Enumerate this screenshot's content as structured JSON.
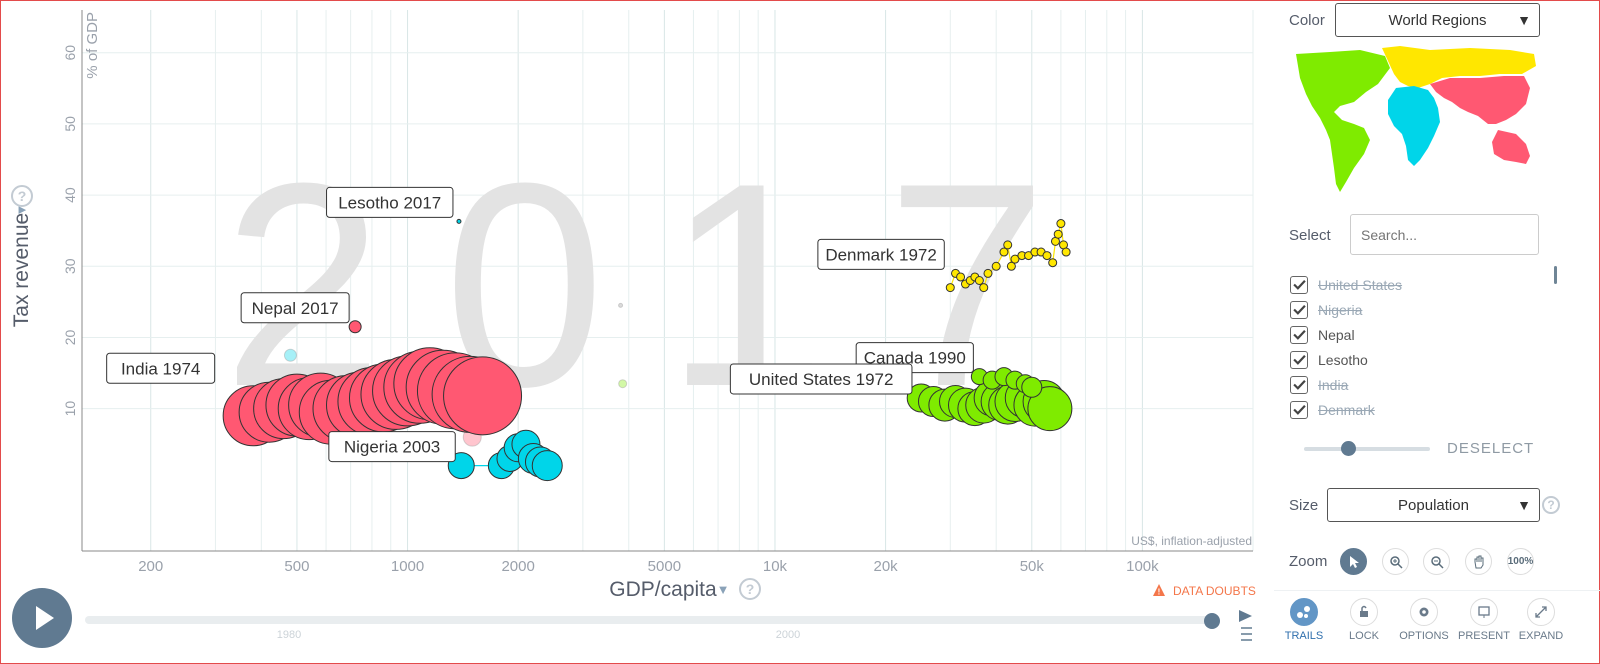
{
  "chart_data": {
    "type": "scatter",
    "year_watermark": "2017",
    "xlabel": "GDP/capita",
    "ylabel": "Tax revenue",
    "y_unit": "% of GDP",
    "x_unit_note": "US$, inflation-adjusted",
    "x_scale": "log",
    "xlim": [
      130,
      200000
    ],
    "ylim": [
      -10,
      66
    ],
    "x_ticks": [
      {
        "v": 200,
        "label": "200"
      },
      {
        "v": 500,
        "label": "500"
      },
      {
        "v": 1000,
        "label": "1000"
      },
      {
        "v": 2000,
        "label": "2000"
      },
      {
        "v": 5000,
        "label": "5000"
      },
      {
        "v": 10000,
        "label": "10k"
      },
      {
        "v": 20000,
        "label": "20k"
      },
      {
        "v": 50000,
        "label": "50k"
      },
      {
        "v": 100000,
        "label": "100k"
      }
    ],
    "y_ticks": [
      10,
      20,
      30,
      40,
      50,
      60
    ],
    "data_doubts": "DATA DOUBTS",
    "timeline": {
      "labels": [
        "1980",
        "2000"
      ]
    },
    "colors": {
      "asia": "#ff5872",
      "africa": "#00d5e9",
      "americas": "#7feb00",
      "europe": "#ffe700",
      "stroke": "#333333"
    },
    "series": [
      {
        "name": "India",
        "color": "#ff5872",
        "points": [
          {
            "x": 380,
            "y": 9,
            "r": 30
          },
          {
            "x": 420,
            "y": 9.5,
            "r": 30
          },
          {
            "x": 460,
            "y": 10,
            "r": 30
          },
          {
            "x": 500,
            "y": 10.5,
            "r": 31
          },
          {
            "x": 540,
            "y": 10,
            "r": 31
          },
          {
            "x": 580,
            "y": 10.5,
            "r": 32
          },
          {
            "x": 620,
            "y": 9.5,
            "r": 32
          },
          {
            "x": 680,
            "y": 10,
            "r": 33
          },
          {
            "x": 740,
            "y": 10.5,
            "r": 33
          },
          {
            "x": 800,
            "y": 11,
            "r": 34
          },
          {
            "x": 860,
            "y": 11.5,
            "r": 34
          },
          {
            "x": 930,
            "y": 12,
            "r": 35
          },
          {
            "x": 1000,
            "y": 12.5,
            "r": 35
          },
          {
            "x": 1080,
            "y": 13,
            "r": 36
          },
          {
            "x": 1150,
            "y": 13.5,
            "r": 36
          },
          {
            "x": 1250,
            "y": 13,
            "r": 37
          },
          {
            "x": 1350,
            "y": 12.5,
            "r": 38
          },
          {
            "x": 1480,
            "y": 12,
            "r": 38
          },
          {
            "x": 1600,
            "y": 11.8,
            "r": 39
          }
        ]
      },
      {
        "name": "Nigeria",
        "color": "#00d5e9",
        "points": [
          {
            "x": 1400,
            "y": 2,
            "r": 13
          },
          {
            "x": 1800,
            "y": 2,
            "r": 13
          },
          {
            "x": 1900,
            "y": 3,
            "r": 13
          },
          {
            "x": 2000,
            "y": 4.5,
            "r": 14
          },
          {
            "x": 2100,
            "y": 5,
            "r": 14
          },
          {
            "x": 2200,
            "y": 3,
            "r": 15
          },
          {
            "x": 2300,
            "y": 2.5,
            "r": 15
          },
          {
            "x": 2400,
            "y": 2,
            "r": 15
          }
        ]
      },
      {
        "name": "United States",
        "color": "#7feb00",
        "points": [
          {
            "x": 25000,
            "y": 11.5,
            "r": 14
          },
          {
            "x": 27000,
            "y": 11,
            "r": 15
          },
          {
            "x": 29000,
            "y": 10.5,
            "r": 16
          },
          {
            "x": 31000,
            "y": 11,
            "r": 16
          },
          {
            "x": 33000,
            "y": 10.5,
            "r": 17
          },
          {
            "x": 35000,
            "y": 10,
            "r": 17
          },
          {
            "x": 37000,
            "y": 10.5,
            "r": 18
          },
          {
            "x": 39000,
            "y": 11.5,
            "r": 18
          },
          {
            "x": 41000,
            "y": 11,
            "r": 19
          },
          {
            "x": 43000,
            "y": 10.5,
            "r": 19
          },
          {
            "x": 45000,
            "y": 11,
            "r": 20
          },
          {
            "x": 48000,
            "y": 11.5,
            "r": 20
          },
          {
            "x": 51000,
            "y": 10.5,
            "r": 21
          },
          {
            "x": 54000,
            "y": 11,
            "r": 21
          },
          {
            "x": 56000,
            "y": 10,
            "r": 22
          }
        ]
      },
      {
        "name": "Canada",
        "color": "#7feb00",
        "points": [
          {
            "x": 36000,
            "y": 14.5,
            "r": 8
          },
          {
            "x": 39000,
            "y": 14,
            "r": 9
          },
          {
            "x": 42000,
            "y": 14.5,
            "r": 9
          },
          {
            "x": 45000,
            "y": 14,
            "r": 9
          },
          {
            "x": 48000,
            "y": 13.5,
            "r": 9
          },
          {
            "x": 50000,
            "y": 13,
            "r": 10
          }
        ]
      },
      {
        "name": "Denmark",
        "color": "#ffe700",
        "points": [
          {
            "x": 30000,
            "y": 27,
            "r": 4
          },
          {
            "x": 31000,
            "y": 29,
            "r": 4
          },
          {
            "x": 32000,
            "y": 28.5,
            "r": 4
          },
          {
            "x": 33000,
            "y": 27.5,
            "r": 4
          },
          {
            "x": 34000,
            "y": 28,
            "r": 4
          },
          {
            "x": 35000,
            "y": 28.5,
            "r": 4
          },
          {
            "x": 36000,
            "y": 28,
            "r": 4
          },
          {
            "x": 37000,
            "y": 27,
            "r": 4
          },
          {
            "x": 38000,
            "y": 29,
            "r": 4
          },
          {
            "x": 40000,
            "y": 30,
            "r": 4
          },
          {
            "x": 42000,
            "y": 32,
            "r": 4
          },
          {
            "x": 43000,
            "y": 33,
            "r": 4
          },
          {
            "x": 44000,
            "y": 30,
            "r": 4
          },
          {
            "x": 45000,
            "y": 31,
            "r": 4
          },
          {
            "x": 47000,
            "y": 31.5,
            "r": 4
          },
          {
            "x": 49000,
            "y": 31.5,
            "r": 4
          },
          {
            "x": 51000,
            "y": 32,
            "r": 4
          },
          {
            "x": 53000,
            "y": 32,
            "r": 4
          },
          {
            "x": 55000,
            "y": 31.5,
            "r": 4
          },
          {
            "x": 57000,
            "y": 30.5,
            "r": 4
          },
          {
            "x": 58000,
            "y": 33.5,
            "r": 4
          },
          {
            "x": 59000,
            "y": 34.5,
            "r": 4
          },
          {
            "x": 60000,
            "y": 36,
            "r": 4
          },
          {
            "x": 61000,
            "y": 33,
            "r": 4
          },
          {
            "x": 62000,
            "y": 32,
            "r": 4
          }
        ]
      },
      {
        "name": "Nepal",
        "color": "#ff5872",
        "points": [
          {
            "x": 720,
            "y": 21.5,
            "r": 6
          }
        ]
      },
      {
        "name": "Lesotho",
        "color": "#00d5e9",
        "points": [
          {
            "x": 1380,
            "y": 36.3,
            "r": 2
          }
        ]
      }
    ],
    "faded_points": [
      {
        "x": 480,
        "y": 17.5,
        "r": 6,
        "color": "#00d5e9"
      },
      {
        "x": 3850,
        "y": 13.5,
        "r": 4,
        "color": "#7feb00"
      },
      {
        "x": 3800,
        "y": 24.5,
        "r": 2,
        "color": "#999999"
      },
      {
        "x": 1500,
        "y": 6,
        "r": 9,
        "color": "#ff5872"
      }
    ],
    "annotations": [
      {
        "text": "Lesotho 2017",
        "x": 1380,
        "y": 36.3,
        "side": "left"
      },
      {
        "text": "Nepal 2017",
        "x": 720,
        "y": 21.5,
        "side": "left"
      },
      {
        "text": "India 1974",
        "x": 310,
        "y": 13,
        "side": "left"
      },
      {
        "text": "Nigeria 2003",
        "x": 1400,
        "y": 2,
        "side": "left"
      },
      {
        "text": "Denmark 1972",
        "x": 30000,
        "y": 29,
        "side": "left"
      },
      {
        "text": "Canada 1990",
        "x": 36000,
        "y": 14.5,
        "side": "left"
      },
      {
        "text": "United States 1972",
        "x": 24500,
        "y": 11.5,
        "side": "left"
      }
    ]
  },
  "panel": {
    "color_label": "Color",
    "color_value": "World Regions",
    "select_label": "Select",
    "search_placeholder": "Search...",
    "selected": [
      {
        "name": "United States",
        "struck": true
      },
      {
        "name": "Nigeria",
        "struck": true
      },
      {
        "name": "Nepal",
        "struck": false
      },
      {
        "name": "Lesotho",
        "struck": false
      },
      {
        "name": "India",
        "struck": true
      },
      {
        "name": "Denmark",
        "struck": true
      }
    ],
    "deselect": "DESELECT",
    "opacity_slider": 0.35,
    "size_label": "Size",
    "size_value": "Population",
    "zoom_label": "Zoom",
    "zoom_100": "100%",
    "toolbar": [
      "TRAILS",
      "LOCK",
      "OPTIONS",
      "PRESENT",
      "EXPAND"
    ]
  }
}
